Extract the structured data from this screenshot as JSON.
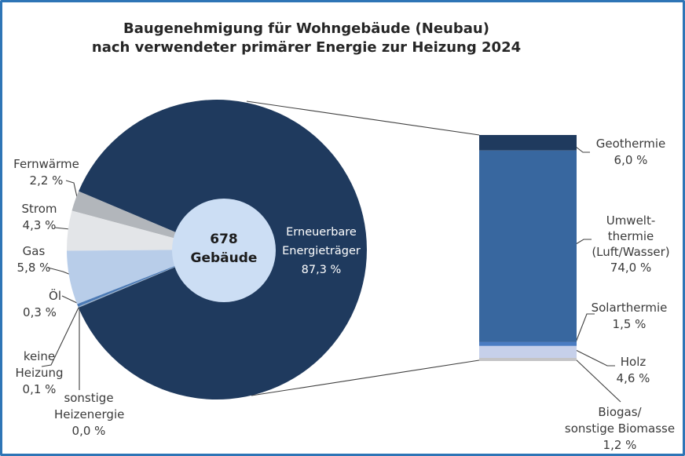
{
  "title": {
    "line1": "Baugenehmigung für Wohngebäude (Neubau)",
    "line2": "nach verwendeter primärer Energie zur Heizung 2024"
  },
  "labels": {
    "fernwaerme": [
      "Fernwärme",
      "2,2 %"
    ],
    "strom": [
      "Strom",
      "4,3 %"
    ],
    "gas": [
      "Gas",
      "5,8 %"
    ],
    "oel": [
      "Öl",
      "0,3 %"
    ],
    "keine_heizung": [
      "keine",
      "Heizung",
      "0,1 %"
    ],
    "sonstige_heizenergie": [
      "sonstige",
      "Heizenergie",
      "0,0 %"
    ],
    "erneuerbare": [
      "Erneuerbare",
      "Energieträger",
      "87,3 %"
    ],
    "center": [
      "678",
      "Gebäude"
    ],
    "geothermie": [
      "Geothermie",
      "6,0 %"
    ],
    "umweltthermie": [
      "Umwelt-",
      "thermie",
      "(Luft/Wasser)",
      "74,0 %"
    ],
    "solarthermie": [
      "Solarthermie",
      "1,5 %"
    ],
    "holz": [
      "Holz",
      "4,6 %"
    ],
    "biogas": [
      "Biogas/",
      "sonstige Biomasse",
      "1,2 %"
    ]
  },
  "colors": {
    "border": "#2e75b6",
    "background": "#ffffff",
    "title_text": "#262626",
    "label_text": "#3a3a3a",
    "leader_line": "#3f3f3f",
    "center_circle_fill": "#ccdef4",
    "center_text": "#1c1c1c",
    "main_slice_text": "#ffffff"
  },
  "chart_data": {
    "type": "pie",
    "title": "Baugenehmigung für Wohngebäude (Neubau) nach verwendeter primärer Energie zur Heizung 2024",
    "center_label": "678 Gebäude",
    "total_units": {
      "value": 678,
      "unit": "Gebäude"
    },
    "slices": [
      {
        "id": "erneuerbare",
        "label": "Erneuerbare Energieträger",
        "value_pct": 87.3,
        "color": "#1f3a5e"
      },
      {
        "id": "fernwaerme",
        "label": "Fernwärme",
        "value_pct": 2.2,
        "color": "#b2b6bb"
      },
      {
        "id": "strom",
        "label": "Strom",
        "value_pct": 4.3,
        "color": "#e3e5e8"
      },
      {
        "id": "gas",
        "label": "Gas",
        "value_pct": 5.8,
        "color": "#b8cde9"
      },
      {
        "id": "oel",
        "label": "Öl",
        "value_pct": 0.3,
        "color": "#4c7ab5"
      },
      {
        "id": "keine_heizung",
        "label": "keine Heizung",
        "value_pct": 0.1,
        "color": "#9db3cc"
      },
      {
        "id": "sonstige_heizenergie",
        "label": "sonstige Heizenergie",
        "value_pct": 0.0,
        "color": "#999999"
      }
    ],
    "bar_breakdown": {
      "parent_slice": "Erneuerbare Energieträger",
      "parent_pct": 87.3,
      "segments": [
        {
          "id": "geothermie",
          "label": "Geothermie",
          "value_pct": 6.0,
          "color": "#1f3a5e"
        },
        {
          "id": "umweltthermie",
          "label": "Umweltthermie (Luft/Wasser)",
          "value_pct": 74.0,
          "color": "#38679f"
        },
        {
          "id": "solarthermie",
          "label": "Solarthermie",
          "value_pct": 1.5,
          "color": "#4a7cc2"
        },
        {
          "id": "holz",
          "label": "Holz",
          "value_pct": 4.6,
          "color": "#c6d0ea"
        },
        {
          "id": "biogas",
          "label": "Biogas/sonstige Biomasse",
          "value_pct": 1.2,
          "color": "#c4c4c6"
        }
      ]
    }
  }
}
